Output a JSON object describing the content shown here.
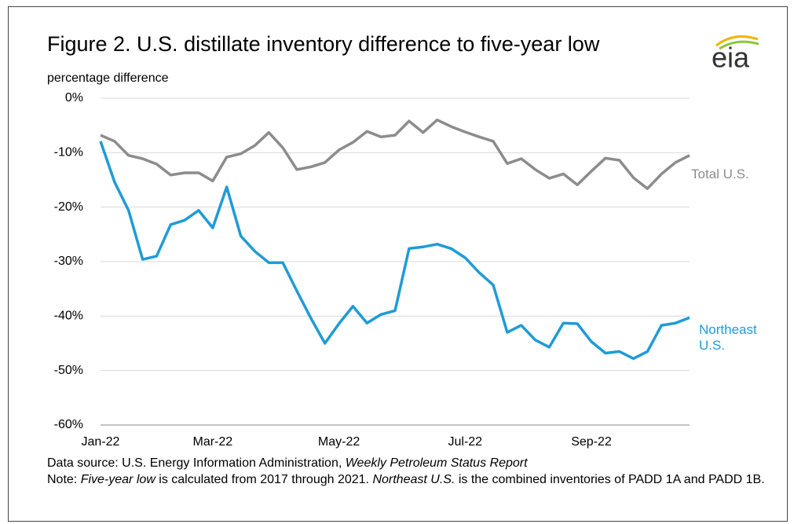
{
  "chart_data": {
    "type": "line",
    "title": "Figure 2. U.S. distillate inventory difference to five-year low",
    "y_label": "percentage difference",
    "logo": "eia",
    "categories": [
      "Jan-22",
      null,
      null,
      null,
      null,
      null,
      null,
      null,
      "Mar-22",
      null,
      null,
      null,
      null,
      null,
      null,
      null,
      null,
      "May-22",
      null,
      null,
      null,
      null,
      null,
      null,
      null,
      null,
      "Jul-22",
      null,
      null,
      null,
      null,
      null,
      null,
      null,
      null,
      "Sep-22",
      null,
      null,
      null,
      null,
      null,
      null,
      null
    ],
    "series": [
      {
        "name": "Total U.S.",
        "color": "#8c8c8c",
        "values": [
          -6.8,
          -7.9,
          -10.5,
          -11.1,
          -12.1,
          -14.1,
          -13.7,
          -13.7,
          -15.2,
          -10.8,
          -10.2,
          -8.7,
          -6.3,
          -9.1,
          -13.1,
          -12.6,
          -11.8,
          -9.5,
          -8.1,
          -6.1,
          -7.1,
          -6.8,
          -4.2,
          -6.3,
          -4.0,
          -5.2,
          -6.2,
          -7.1,
          -7.9,
          -12.0,
          -11.1,
          -13.1,
          -14.7,
          -13.9,
          -15.9,
          -13.4,
          -11.0,
          -11.4,
          -14.6,
          -16.6,
          -13.9,
          -11.8,
          -10.5
        ]
      },
      {
        "name": "Northeast U.S.",
        "color": "#1f9bd7",
        "values": [
          -7.9,
          -15.4,
          -20.6,
          -29.6,
          -29.0,
          -23.2,
          -22.4,
          -20.6,
          -23.8,
          -16.3,
          -25.3,
          -28.1,
          -30.2,
          -30.2,
          -35.4,
          -40.4,
          -45.0,
          -41.4,
          -38.2,
          -41.3,
          -39.7,
          -39.0,
          -27.6,
          -27.3,
          -26.8,
          -27.6,
          -29.3,
          -32.0,
          -34.3,
          -43.0,
          -41.7,
          -44.4,
          -45.7,
          -41.3,
          -41.4,
          -44.7,
          -46.8,
          -46.5,
          -47.8,
          -46.5,
          -41.7,
          -41.3,
          -40.3
        ]
      }
    ],
    "ylim": [
      -60,
      0
    ],
    "yticks": [
      {
        "value": 0,
        "label": "0%"
      },
      {
        "value": -10,
        "label": "-10%"
      },
      {
        "value": -20,
        "label": "-20%"
      },
      {
        "value": -30,
        "label": "-30%"
      },
      {
        "value": -40,
        "label": "-40%"
      },
      {
        "value": -50,
        "label": "-50%"
      },
      {
        "value": -60,
        "label": "-60%"
      }
    ],
    "grid": true,
    "source": [
      "Data source: U.S. Energy Information Administration, ",
      "Weekly Petroleum Status Report"
    ],
    "note": [
      "Note: ",
      "Five-year low",
      " is calculated from 2017 through 2021. ",
      "Northeast U.S.",
      " is the combined inventories of PADD 1A and PADD 1B."
    ]
  }
}
